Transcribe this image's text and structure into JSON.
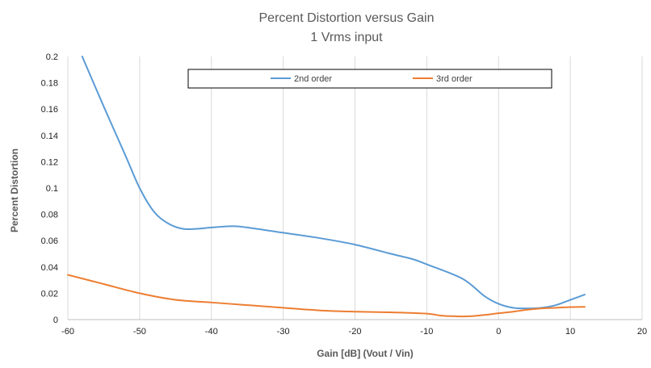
{
  "chart_data": {
    "type": "line",
    "title": "Percent Distortion versus Gain",
    "subtitle": "1 Vrms input",
    "xlabel": "Gain [dB]  (Vout / Vin)",
    "ylabel": "Percent Distortion",
    "xlim": [
      -60,
      20
    ],
    "ylim": [
      0,
      0.2
    ],
    "x_ticks": [
      -60,
      -50,
      -40,
      -30,
      -20,
      -10,
      0,
      10,
      20
    ],
    "y_ticks": [
      0,
      0.02,
      0.04,
      0.06,
      0.08,
      0.1,
      0.12,
      0.14,
      0.16,
      0.18,
      0.2
    ],
    "grid": "vertical",
    "legend_position": "top",
    "series": [
      {
        "name": "2nd order",
        "color": "#5B9BD5",
        "x": [
          -58,
          -55,
          -52,
          -50,
          -48,
          -46,
          -44,
          -42,
          -40,
          -37,
          -35,
          -30,
          -25,
          -20,
          -15,
          -12,
          -10,
          -5,
          -2,
          0,
          2,
          4,
          6,
          8,
          10,
          12
        ],
        "values": [
          0.2,
          0.162,
          0.125,
          0.1,
          0.082,
          0.073,
          0.069,
          0.069,
          0.07,
          0.071,
          0.07,
          0.066,
          0.062,
          0.057,
          0.05,
          0.046,
          0.042,
          0.031,
          0.018,
          0.012,
          0.009,
          0.0085,
          0.009,
          0.011,
          0.015,
          0.019
        ]
      },
      {
        "name": "3rd order",
        "color": "#ED7D31",
        "x": [
          -60,
          -55,
          -50,
          -45,
          -40,
          -35,
          -30,
          -25,
          -20,
          -15,
          -10,
          -8,
          -6,
          -4,
          -2,
          0,
          2,
          4,
          6,
          8,
          10,
          12
        ],
        "values": [
          0.034,
          0.027,
          0.02,
          0.015,
          0.013,
          0.011,
          0.009,
          0.007,
          0.006,
          0.0055,
          0.0045,
          0.003,
          0.0025,
          0.0025,
          0.0035,
          0.0048,
          0.006,
          0.0075,
          0.0085,
          0.009,
          0.0095,
          0.0097
        ]
      }
    ]
  }
}
